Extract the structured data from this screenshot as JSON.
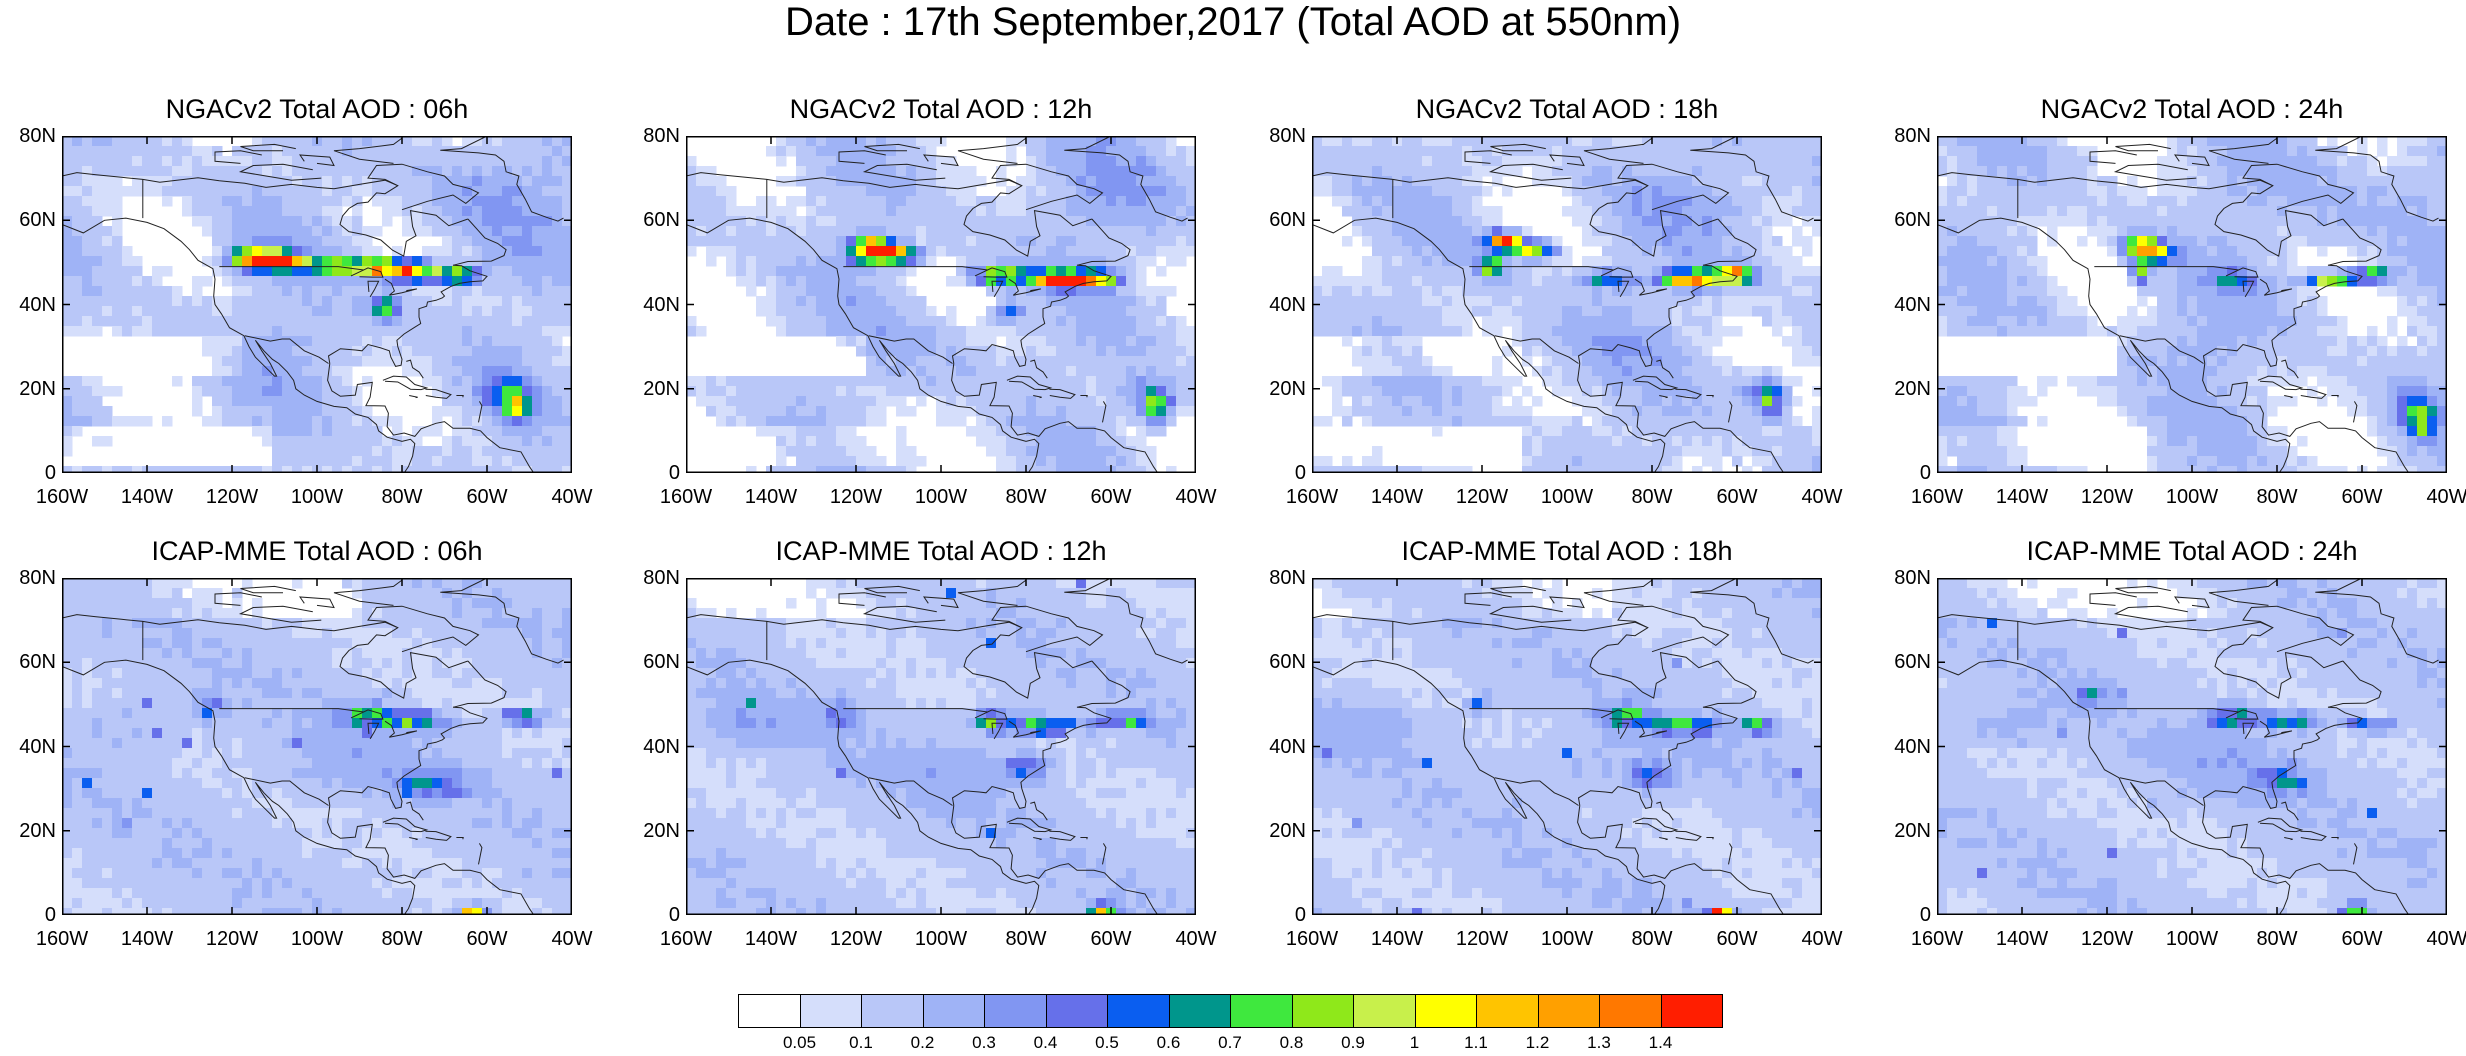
{
  "title": "Date : 17th September,2017 (Total AOD at 550nm)",
  "panels": [
    {
      "title": "NGACv2 Total AOD : 06h",
      "model": "NGAC",
      "hour": 6
    },
    {
      "title": "NGACv2 Total AOD : 12h",
      "model": "NGAC",
      "hour": 12
    },
    {
      "title": "NGACv2 Total AOD : 18h",
      "model": "NGAC",
      "hour": 18
    },
    {
      "title": "NGACv2 Total AOD : 24h",
      "model": "NGAC",
      "hour": 24
    },
    {
      "title": "ICAP-MME Total AOD : 06h",
      "model": "ICAP",
      "hour": 6
    },
    {
      "title": "ICAP-MME Total AOD : 12h",
      "model": "ICAP",
      "hour": 12
    },
    {
      "title": "ICAP-MME Total AOD : 18h",
      "model": "ICAP",
      "hour": 18
    },
    {
      "title": "ICAP-MME Total AOD : 24h",
      "model": "ICAP",
      "hour": 24
    }
  ],
  "lat_labels": [
    "80N",
    "60N",
    "40N",
    "20N",
    "0"
  ],
  "lon_labels": [
    "160W",
    "140W",
    "120W",
    "100W",
    "80W",
    "60W",
    "40W"
  ],
  "colorbar": {
    "labels": [
      "0.05",
      "0.1",
      "0.2",
      "0.3",
      "0.4",
      "0.5",
      "0.6",
      "0.7",
      "0.8",
      "0.9",
      "1",
      "1.1",
      "1.2",
      "1.3",
      "1.4"
    ],
    "colors": [
      "#ffffff",
      "#d5defb",
      "#b9c7f8",
      "#9fb3f6",
      "#8196f2",
      "#6670ea",
      "#0a5ef0",
      "#00968c",
      "#3fe83e",
      "#8fe81a",
      "#c8f04b",
      "#ffff00",
      "#ffc400",
      "#ffa000",
      "#ff7800",
      "#ff1e00"
    ]
  }
}
